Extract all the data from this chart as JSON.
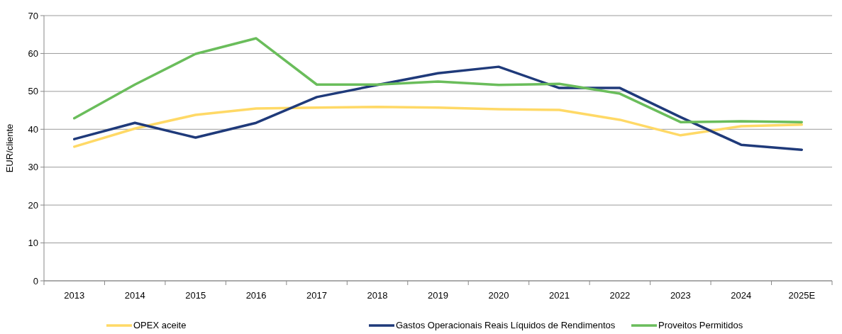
{
  "chart_data": {
    "type": "line",
    "ylabel": "EUR/cliente",
    "categories": [
      "2013",
      "2014",
      "2015",
      "2016",
      "2017",
      "2018",
      "2019",
      "2020",
      "2021",
      "2022",
      "2023",
      "2024",
      "2025E"
    ],
    "series": [
      {
        "name": "OPEX aceite",
        "color": "#ffd966",
        "values": [
          35.4,
          40.2,
          43.8,
          45.5,
          45.7,
          45.9,
          45.7,
          45.3,
          45.1,
          42.5,
          38.4,
          40.8,
          41.2
        ]
      },
      {
        "name": "Gastos Operacionais Reais Líquidos de Rendimentos",
        "color": "#1f3a7a",
        "values": [
          37.4,
          41.7,
          37.8,
          41.7,
          48.5,
          51.7,
          54.8,
          56.5,
          50.9,
          50.9,
          43.2,
          35.9,
          34.6
        ]
      },
      {
        "name": "Proveitos Permitidos",
        "color": "#6abd5b",
        "values": [
          42.9,
          51.8,
          59.9,
          64.0,
          51.8,
          51.8,
          52.6,
          51.7,
          52.0,
          49.4,
          41.9,
          42.1,
          41.9
        ]
      }
    ],
    "ylim": [
      0,
      70
    ],
    "yticks": [
      0,
      10,
      20,
      30,
      40,
      50,
      60,
      70
    ],
    "grid": "y",
    "legend": "bottom",
    "marker": "none",
    "line_style": "solid"
  }
}
